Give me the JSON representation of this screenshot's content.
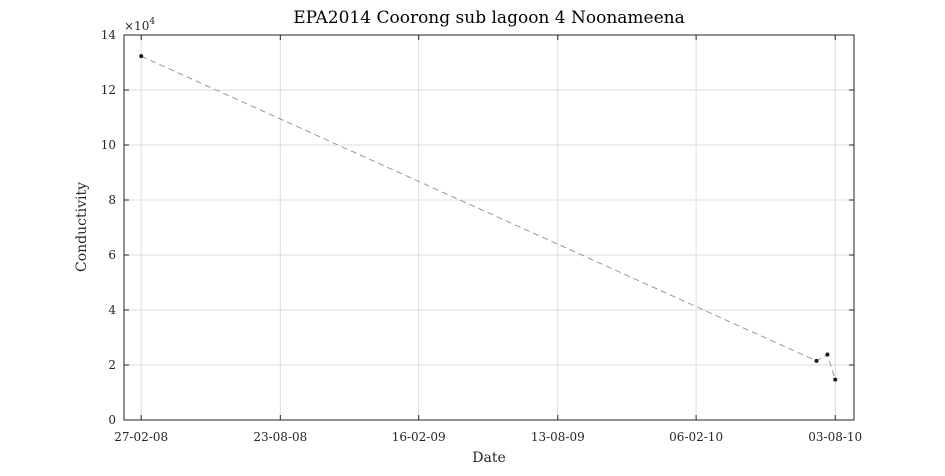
{
  "chart_data": {
    "type": "line",
    "title": "EPA2014 Coorong sub lagoon 4 Noonameena",
    "xlabel": "Date",
    "ylabel": "Conductivity",
    "y_scale_factor": {
      "base": "×10",
      "exponent": "4"
    },
    "x_tick_labels": [
      "27-02-08",
      "23-08-08",
      "16-02-09",
      "13-08-09",
      "06-02-10",
      "03-08-10"
    ],
    "x_tick_dates": [
      "2008-02-27",
      "2008-08-23",
      "2009-02-16",
      "2009-08-13",
      "2010-02-06",
      "2010-08-03"
    ],
    "xlim": [
      "2008-02-05",
      "2010-08-27"
    ],
    "y_tick_labels": [
      "0",
      "2",
      "4",
      "6",
      "8",
      "10",
      "12",
      "14"
    ],
    "y_ticks": [
      0,
      20000,
      40000,
      60000,
      80000,
      100000,
      120000,
      140000
    ],
    "ylim": [
      0,
      140000
    ],
    "grid": true,
    "series": [
      {
        "line_style": "dashed",
        "line_color": "#999999",
        "marker_color": "#1a1a1a",
        "x": [
          "2008-02-27",
          "2010-07-10",
          "2010-07-24",
          "2010-08-03"
        ],
        "y": [
          132300,
          21500,
          23800,
          14700
        ]
      }
    ]
  }
}
